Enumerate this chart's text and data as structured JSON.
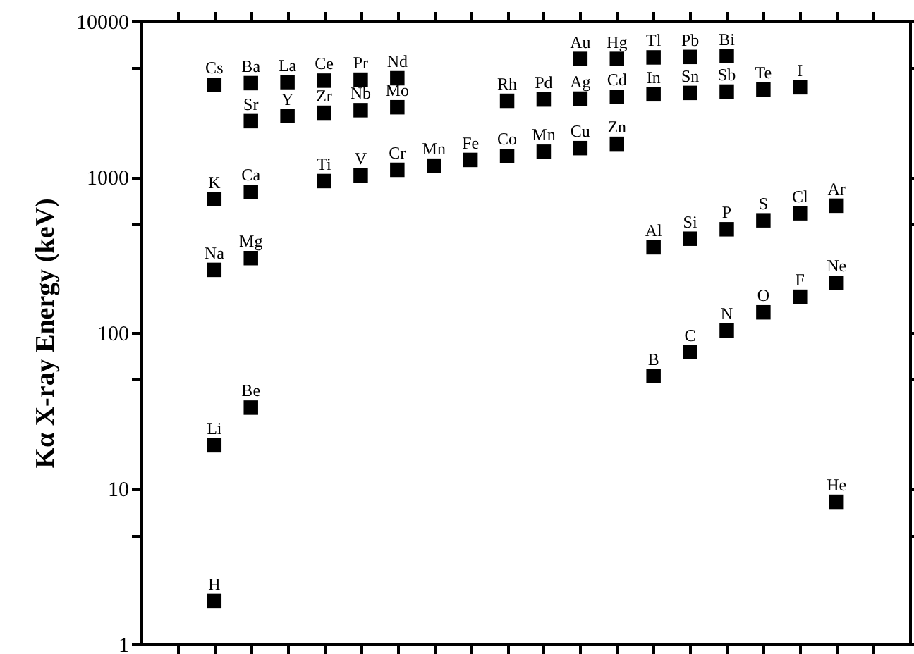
{
  "chart_data": {
    "type": "scatter",
    "ylabel": "Kα X-ray Energy (keV)",
    "categories": [
      null,
      null,
      null,
      null,
      null,
      null,
      null,
      null,
      null,
      null,
      null,
      null,
      null,
      null,
      null,
      null,
      null,
      null,
      null,
      null
    ],
    "series": [
      {
        "color": "#000000",
        "values": [
          null,
          3900,
          4000,
          4060,
          4150,
          4210,
          4300,
          null,
          null,
          null,
          null,
          5720,
          5720,
          5850,
          5890,
          5970,
          null,
          null,
          null,
          null
        ],
        "value_labels": [
          null,
          "Cs",
          "Ba",
          "La",
          "Ce",
          "Pr",
          "Nd",
          null,
          null,
          null,
          null,
          "Au",
          "Hg",
          "Tl",
          "Pb",
          "Bi",
          null,
          null,
          null,
          null
        ]
      },
      {
        "color": "#000000",
        "values": [
          null,
          null,
          2280,
          2460,
          2580,
          2680,
          2800,
          null,
          null,
          3080,
          3140,
          3180,
          3270,
          3390,
          3460,
          3530,
          3630,
          3760,
          null,
          null
        ],
        "value_labels": [
          null,
          null,
          "Sr",
          "Y",
          "Zr",
          "Nb",
          "Mo",
          null,
          null,
          "Rh",
          "Pd",
          "Ag",
          "Cd",
          "In",
          "Sn",
          "Sb",
          "Te",
          "I",
          null,
          null
        ]
      },
      {
        "color": "#000000",
        "values": [
          null,
          720,
          800,
          null,
          940,
          1020,
          1110,
          1180,
          1285,
          1360,
          1450,
          1530,
          1630,
          null,
          null,
          null,
          null,
          null,
          null,
          null
        ],
        "value_labels": [
          null,
          "K",
          "Ca",
          null,
          "Ti",
          "V",
          "Cr",
          "Mn",
          "Fe",
          "Co",
          "Mn",
          "Cu",
          "Zn",
          null,
          null,
          null,
          null,
          null,
          null,
          null
        ]
      },
      {
        "color": "#000000",
        "values": [
          null,
          253,
          301,
          null,
          null,
          null,
          null,
          null,
          null,
          null,
          null,
          null,
          null,
          353,
          401,
          461,
          526,
          584,
          653,
          null
        ],
        "value_labels": [
          null,
          "Na",
          "Mg",
          null,
          null,
          null,
          null,
          null,
          null,
          null,
          null,
          null,
          null,
          "Al",
          "Si",
          "P",
          "S",
          "Cl",
          "Ar",
          null
        ]
      },
      {
        "color": "#000000",
        "values": [
          null,
          18.9,
          33,
          null,
          null,
          null,
          null,
          null,
          null,
          null,
          null,
          null,
          null,
          52.6,
          75,
          103,
          135,
          170,
          209,
          null
        ],
        "value_labels": [
          null,
          "Li",
          "Be",
          null,
          null,
          null,
          null,
          null,
          null,
          null,
          null,
          null,
          null,
          "B",
          "C",
          "N",
          "O",
          "F",
          "Ne",
          null
        ]
      },
      {
        "color": "#000000",
        "values": [
          null,
          1.89,
          null,
          null,
          null,
          null,
          null,
          null,
          null,
          null,
          null,
          null,
          null,
          null,
          null,
          null,
          null,
          null,
          8.2,
          null
        ],
        "value_labels": [
          null,
          "H",
          null,
          null,
          null,
          null,
          null,
          null,
          null,
          null,
          null,
          null,
          null,
          null,
          null,
          null,
          null,
          null,
          "He",
          null
        ]
      }
    ],
    "ylim": [
      1,
      10000
    ],
    "yticks": [
      1,
      {
        "value": 5,
        "label": null
      },
      10,
      {
        "value": 50,
        "label": null
      },
      100,
      {
        "value": 500,
        "label": null
      },
      1000,
      {
        "value": 5000,
        "label": null
      },
      10000
    ],
    "log": "y",
    "grid": false,
    "marker": "square",
    "tick_labels": "y"
  }
}
